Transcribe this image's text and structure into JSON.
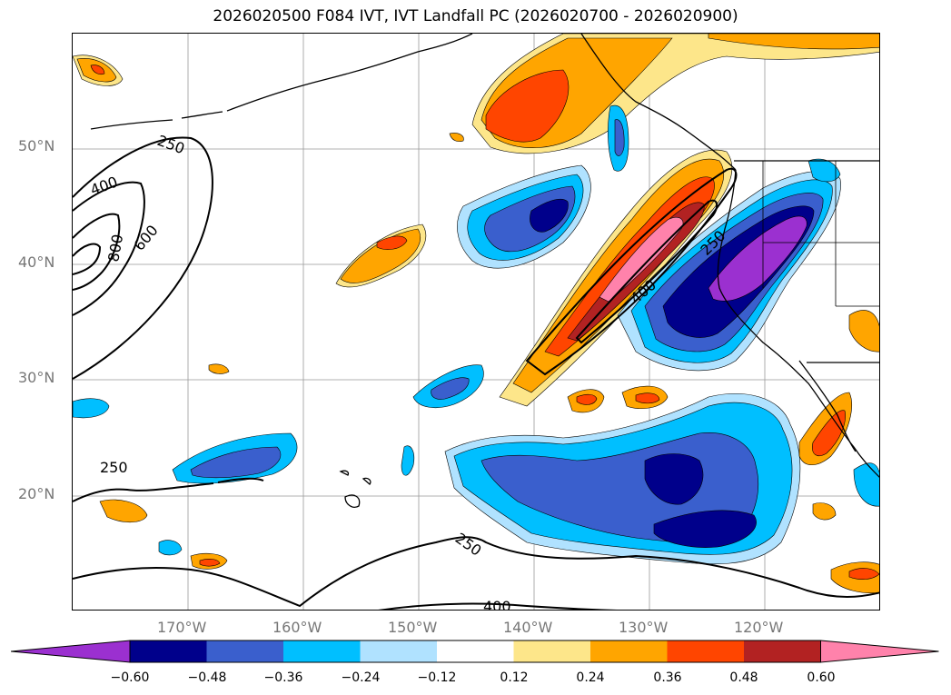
{
  "title": "2026020500 F084 IVT, IVT Landfall PC (2026020700 - 2026020900)",
  "lat_labels": [
    "50°N",
    "40°N",
    "30°N",
    "20°N"
  ],
  "lon_labels": [
    "170°W",
    "160°W",
    "150°W",
    "140°W",
    "130°W",
    "120°W"
  ],
  "contour_labels": [
    "250",
    "400",
    "600",
    "800",
    "250",
    "250",
    "400",
    "250",
    "400"
  ],
  "colorbar": {
    "colors": [
      "#9b30d0",
      "#00008b",
      "#3a5fcd",
      "#00bfff",
      "#b0e2ff",
      "#ffffff",
      "#fde68a",
      "#ffa500",
      "#ff4500",
      "#b22222",
      "#ff82ab"
    ],
    "tick_labels": [
      "−0.60",
      "−0.48",
      "−0.36",
      "−0.24",
      "−0.12",
      "0.12",
      "0.24",
      "0.36",
      "0.48",
      "0.60"
    ]
  },
  "map": {
    "projection": "PlateCarree",
    "lon_range": [
      -180,
      -110
    ],
    "lat_range": [
      10,
      60
    ],
    "fields": [
      "IVT contours",
      "IVT Landfall PC shading"
    ]
  }
}
